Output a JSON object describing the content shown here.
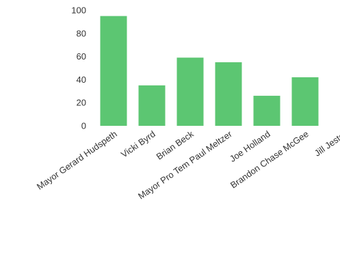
{
  "chart_data": {
    "type": "bar",
    "title": "",
    "xlabel": "",
    "ylabel": "",
    "categories": [
      "Mayor Gerard Hudspeth",
      "Vicki Byrd",
      "Brian Beck",
      "Mayor Pro Tem Paul Meltzer",
      "Joe Holland",
      "Brandon Chase McGee",
      "Jill Jester"
    ],
    "values": [
      95,
      35,
      59,
      55,
      26,
      42,
      0
    ],
    "ylim": [
      0,
      100
    ],
    "yticks": [
      "0",
      "20",
      "40",
      "60",
      "80",
      "100"
    ],
    "bar_color": "#5cc672",
    "grid": false,
    "legend": "none"
  }
}
